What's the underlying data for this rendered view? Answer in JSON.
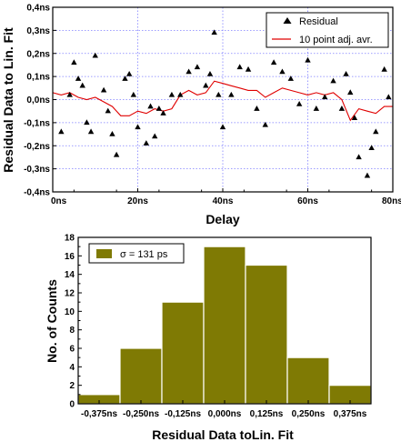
{
  "chart_data": [
    {
      "type": "scatter",
      "xlabel": "Delay",
      "ylabel": "Residual Data to Lin. Fit",
      "xlim": [
        0,
        80
      ],
      "ylim": [
        -0.4,
        0.4
      ],
      "x_ticks": [
        "0ns",
        "20ns",
        "40ns",
        "60ns",
        "80ns"
      ],
      "x_tick_values": [
        0,
        20,
        40,
        60,
        80
      ],
      "y_ticks": [
        "0,4ns",
        "0,3ns",
        "0,2ns",
        "0,1ns",
        "0,0ns",
        "-0,1ns",
        "-0,2ns",
        "-0,3ns",
        "-0,4ns"
      ],
      "y_tick_values": [
        0.4,
        0.3,
        0.2,
        0.1,
        0.0,
        -0.1,
        -0.2,
        -0.3,
        -0.4
      ],
      "grid": true,
      "legend_position": "top-right",
      "colors": {
        "residual": "#000000",
        "average": "#e00000",
        "grid": "#7f7fff"
      },
      "series": [
        {
          "name": "Residual",
          "kind": "scatter",
          "x": [
            2,
            4,
            5,
            6,
            7,
            8,
            9,
            10,
            12,
            13,
            14,
            15,
            17,
            18,
            19,
            20,
            22,
            23,
            24,
            25,
            26,
            28,
            30,
            32,
            34,
            36,
            37,
            38,
            39,
            40,
            42,
            44,
            46,
            48,
            50,
            52,
            54,
            56,
            58,
            60,
            62,
            64,
            66,
            68,
            69,
            70,
            71,
            72,
            74,
            75,
            76,
            78,
            79
          ],
          "values": [
            -0.14,
            0.02,
            0.16,
            0.09,
            0.06,
            -0.1,
            -0.14,
            0.19,
            0.04,
            -0.05,
            -0.15,
            -0.24,
            0.09,
            0.11,
            0.02,
            -0.12,
            -0.19,
            -0.03,
            -0.16,
            -0.04,
            -0.06,
            0.02,
            0.02,
            0.12,
            0.14,
            0.06,
            0.11,
            0.29,
            0.02,
            -0.12,
            0.02,
            0.14,
            0.13,
            -0.04,
            -0.11,
            0.16,
            0.12,
            0.09,
            -0.02,
            0.17,
            -0.04,
            0.01,
            0.08,
            -0.04,
            0.11,
            0.03,
            -0.08,
            -0.25,
            -0.33,
            -0.21,
            -0.14,
            0.13,
            0.01
          ]
        },
        {
          "name": "10 point adj. avr.",
          "kind": "line",
          "x": [
            0,
            2,
            4,
            6,
            8,
            10,
            12,
            14,
            16,
            18,
            20,
            22,
            24,
            26,
            28,
            30,
            32,
            34,
            36,
            38,
            40,
            42,
            44,
            46,
            48,
            50,
            52,
            54,
            56,
            58,
            60,
            62,
            64,
            66,
            68,
            70,
            72,
            74,
            76,
            78,
            80
          ],
          "values": [
            0.03,
            0.02,
            0.03,
            0.01,
            0.0,
            0.01,
            -0.01,
            -0.03,
            -0.07,
            -0.07,
            -0.05,
            -0.06,
            -0.04,
            -0.05,
            -0.04,
            0.02,
            0.04,
            0.02,
            0.03,
            0.08,
            0.07,
            0.06,
            0.05,
            0.04,
            0.04,
            0.01,
            0.03,
            0.05,
            0.04,
            0.03,
            0.02,
            0.03,
            0.02,
            0.03,
            0.0,
            -0.09,
            -0.04,
            -0.05,
            -0.06,
            -0.03,
            -0.03
          ]
        }
      ]
    },
    {
      "type": "bar",
      "xlabel": "Residual Data toLin. Fit",
      "ylabel": "No. of Counts",
      "ylim": [
        0,
        18
      ],
      "y_ticks": [
        "0",
        "2",
        "4",
        "6",
        "8",
        "10",
        "12",
        "14",
        "16",
        "18"
      ],
      "y_tick_values": [
        0,
        2,
        4,
        6,
        8,
        10,
        12,
        14,
        16,
        18
      ],
      "x_ticks": [
        "-0,375ns",
        "-0,250ns",
        "-0,125ns",
        "0,000ns",
        "0,125ns",
        "0,250ns",
        "0,375ns"
      ],
      "bin_edges": [
        -0.4375,
        -0.3125,
        -0.1875,
        -0.0625,
        0.0625,
        0.1875,
        0.3125,
        0.4375
      ],
      "xlim": [
        -0.4375,
        0.4375
      ],
      "values": [
        1,
        6,
        11,
        17,
        15,
        5,
        2
      ],
      "legend_position": "top-left",
      "legend_label": "σ = 131 ps",
      "colors": {
        "bar": "#7f7a04",
        "bar_edge": "#ffffff"
      }
    }
  ]
}
